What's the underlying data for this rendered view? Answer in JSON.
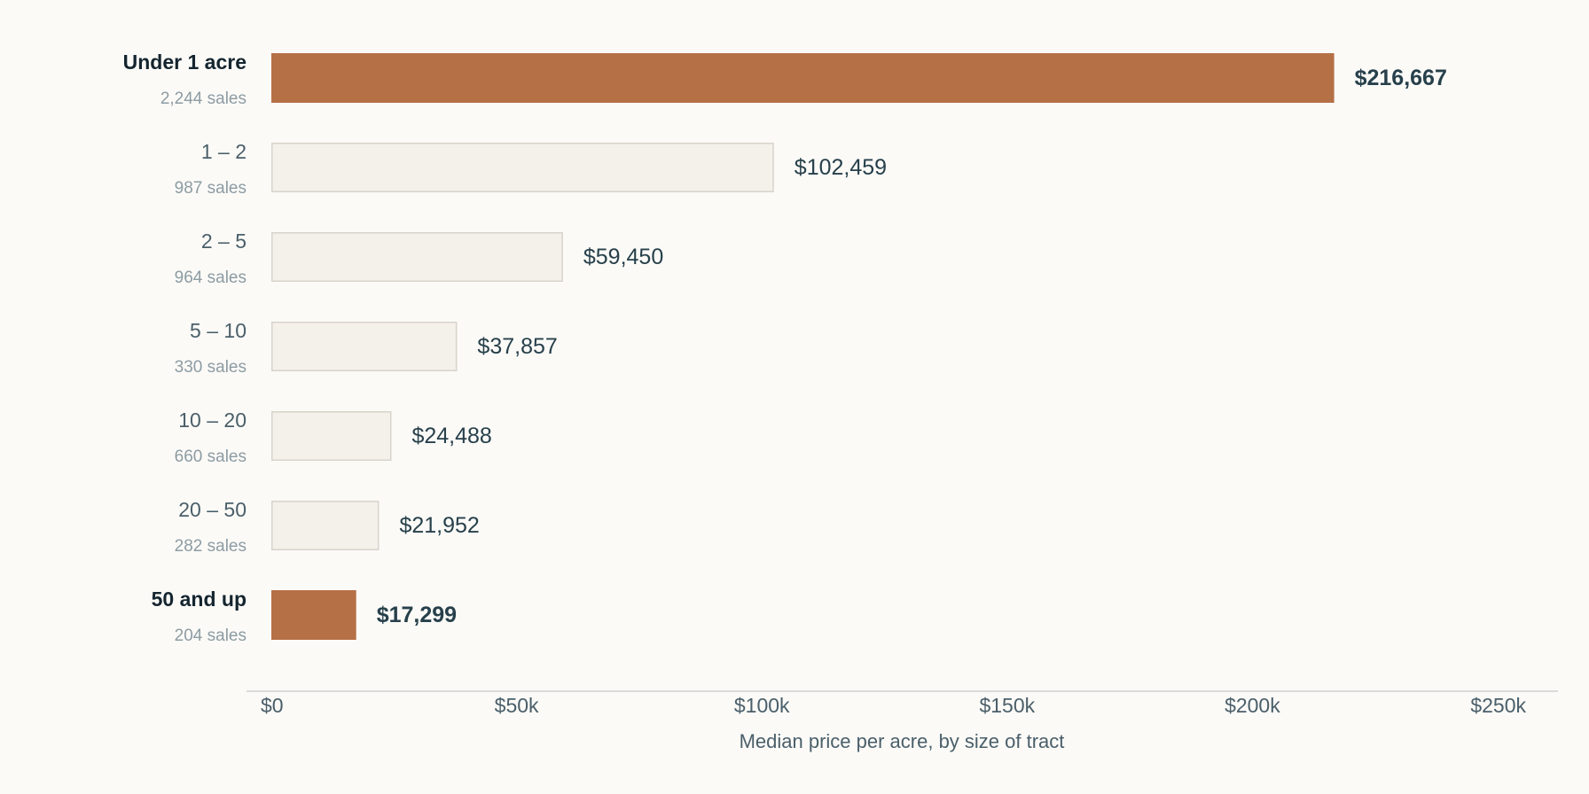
{
  "chart_data": {
    "type": "bar",
    "orientation": "horizontal",
    "xlabel": "Median price per acre, by size of tract",
    "xlim": [
      0,
      250000
    ],
    "x_ticks": [
      {
        "value": 0,
        "label": "$0"
      },
      {
        "value": 50000,
        "label": "$50k"
      },
      {
        "value": 100000,
        "label": "$100k"
      },
      {
        "value": 150000,
        "label": "$150k"
      },
      {
        "value": 200000,
        "label": "$200k"
      },
      {
        "value": 250000,
        "label": "$250k"
      }
    ],
    "grid": false,
    "categories": [
      {
        "label": "Under 1 acre",
        "sales": "2,244 sales",
        "value": 216667,
        "value_label": "$216,667",
        "highlight": true
      },
      {
        "label": "1 – 2",
        "sales": "987 sales",
        "value": 102459,
        "value_label": "$102,459",
        "highlight": false
      },
      {
        "label": "2 – 5",
        "sales": "964 sales",
        "value": 59450,
        "value_label": "$59,450",
        "highlight": false
      },
      {
        "label": "5 – 10",
        "sales": "330 sales",
        "value": 37857,
        "value_label": "$37,857",
        "highlight": false
      },
      {
        "label": "10 – 20",
        "sales": "660 sales",
        "value": 24488,
        "value_label": "$24,488",
        "highlight": false
      },
      {
        "label": "20 – 50",
        "sales": "282 sales",
        "value": 21952,
        "value_label": "$21,952",
        "highlight": false
      },
      {
        "label": "50 and up",
        "sales": "204 sales",
        "value": 17299,
        "value_label": "$17,299",
        "highlight": true
      }
    ],
    "colors": {
      "highlight_fill": "#b57046",
      "highlight_text": "#b57046",
      "normal_fill": "#f4f0ea",
      "normal_stroke": "#d8d3cb",
      "axis_line": "#cfcfcf"
    }
  }
}
